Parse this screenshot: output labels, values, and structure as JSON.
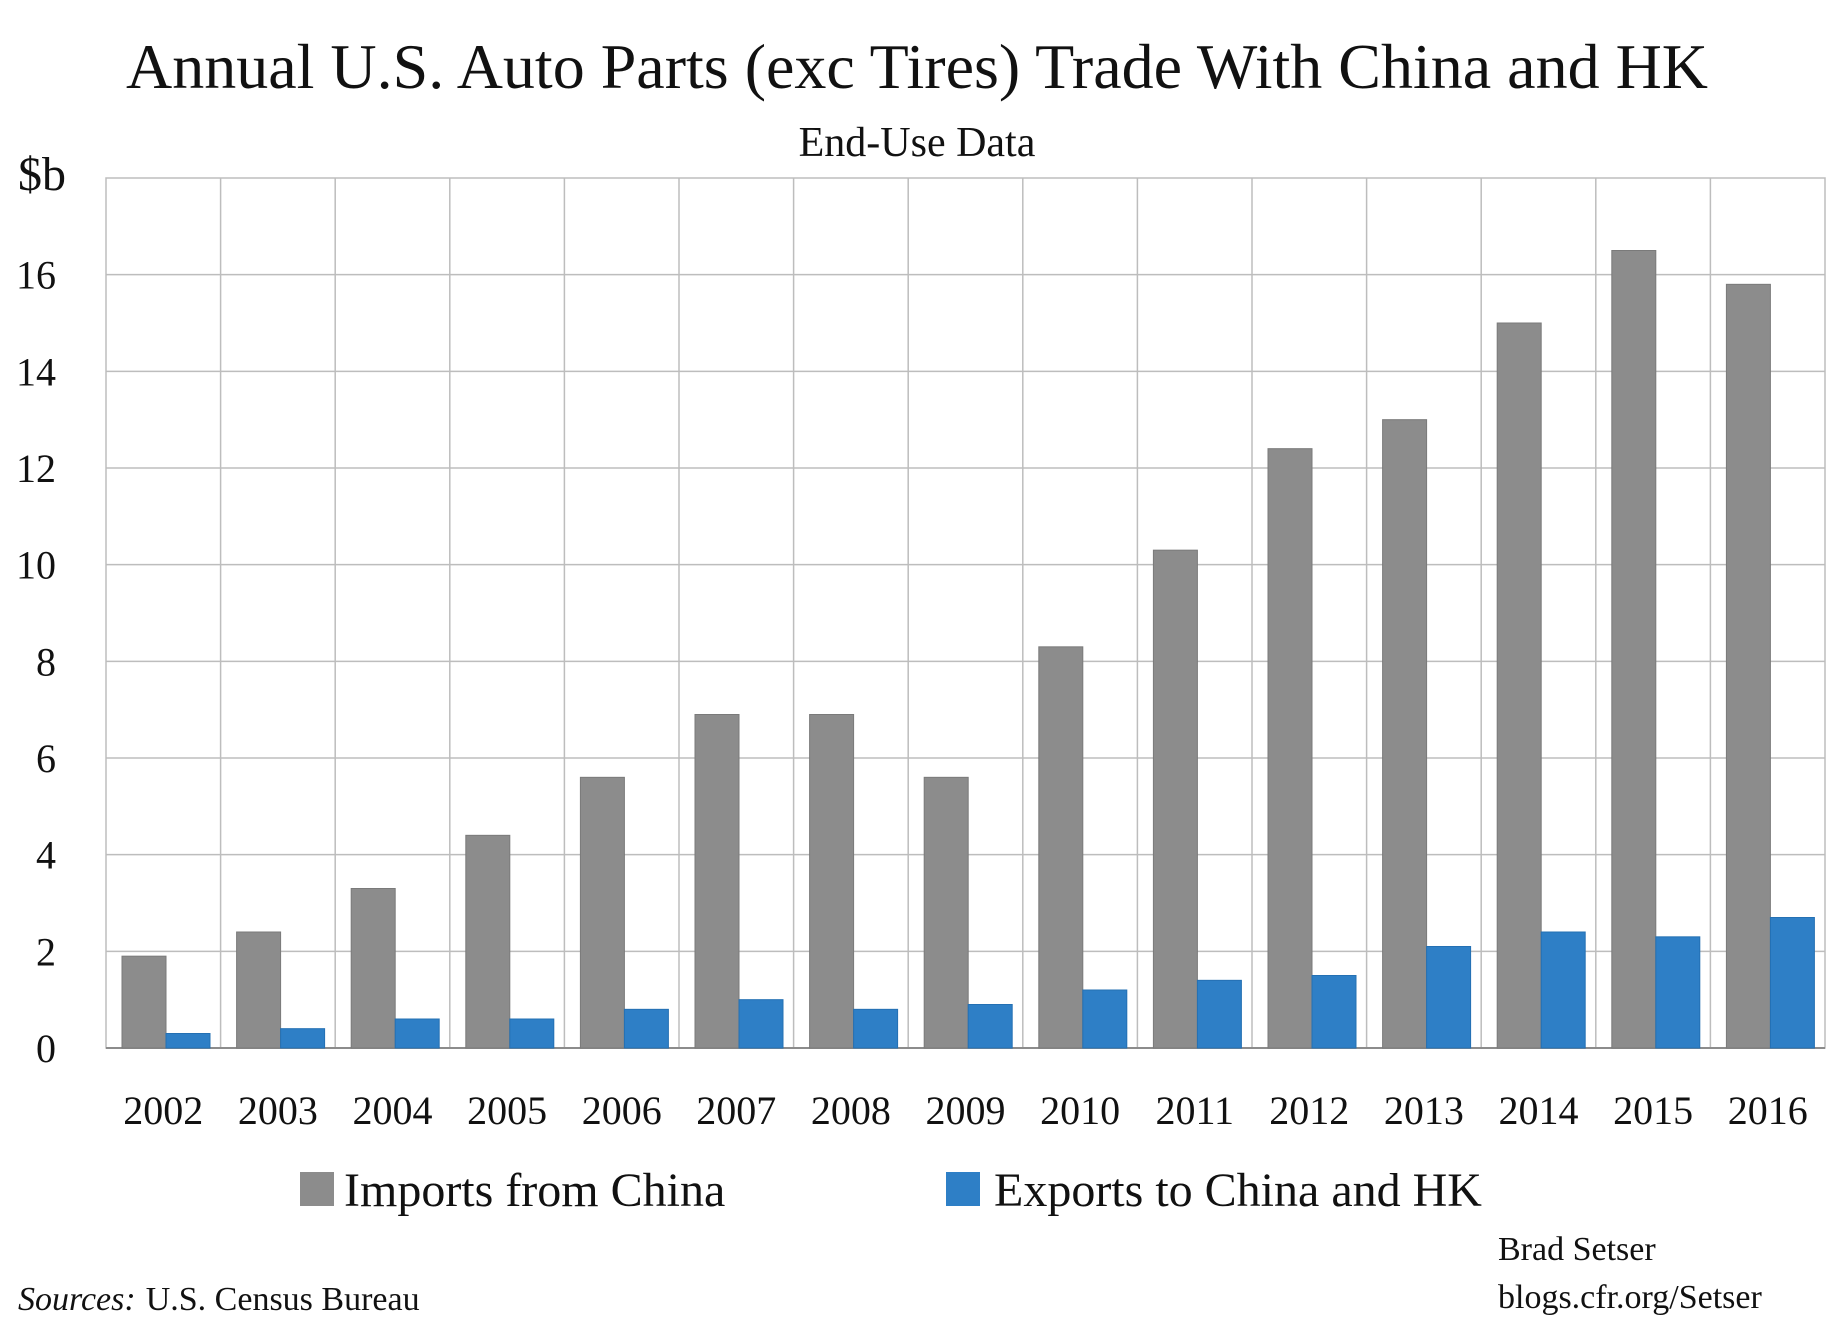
{
  "chart_data": {
    "type": "bar",
    "title": "Annual U.S. Auto Parts (exc Tires) Trade With China and HK",
    "subtitle": "End-Use Data",
    "ylabel": "$b",
    "xlabel": "",
    "ylim": [
      0,
      18
    ],
    "yticks": [
      0,
      2,
      4,
      6,
      8,
      10,
      12,
      14,
      16
    ],
    "grid": true,
    "legend_position": "bottom",
    "categories": [
      "2002",
      "2003",
      "2004",
      "2005",
      "2006",
      "2007",
      "2008",
      "2009",
      "2010",
      "2011",
      "2012",
      "2013",
      "2014",
      "2015",
      "2016"
    ],
    "series": [
      {
        "name": "Imports from China",
        "color": "#8c8c8c",
        "values": [
          1.9,
          2.4,
          3.3,
          4.4,
          5.6,
          6.9,
          6.9,
          5.6,
          8.3,
          10.3,
          12.4,
          13.0,
          15.0,
          16.5,
          15.8
        ]
      },
      {
        "name": "Exports to China and HK",
        "color": "#2e7fc6",
        "values": [
          0.3,
          0.4,
          0.6,
          0.6,
          0.8,
          1.0,
          0.8,
          0.9,
          1.2,
          1.4,
          1.5,
          2.1,
          2.4,
          2.3,
          2.7
        ]
      }
    ]
  },
  "source_label": "Sources:",
  "source_text": "U.S. Census Bureau",
  "author": "Brad Setser",
  "author_url": "blogs.cfr.org/Setser"
}
